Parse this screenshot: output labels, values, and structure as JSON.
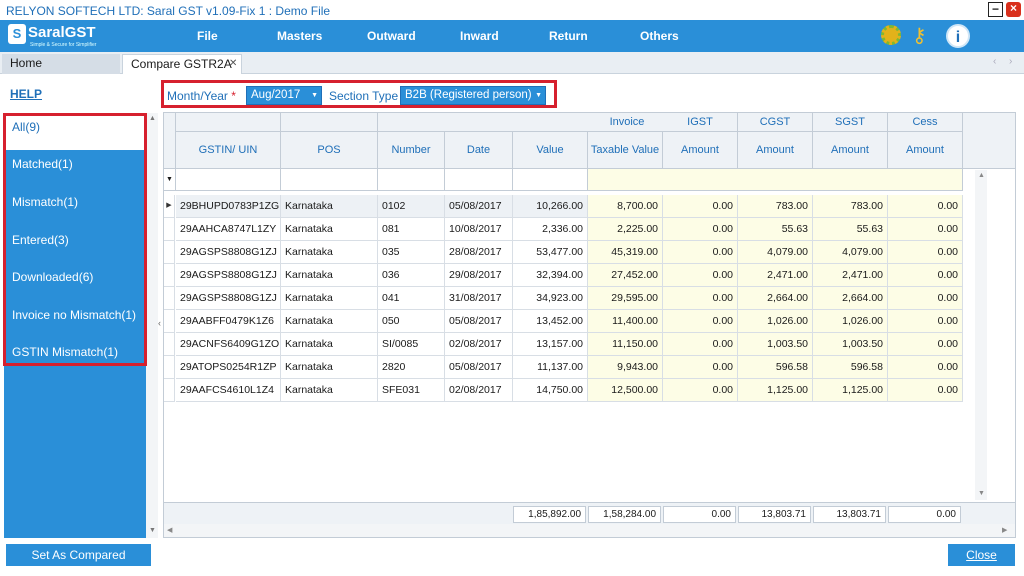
{
  "window": {
    "title": "RELYON SOFTECH LTD: Saral GST v1.09-Fix 1 : Demo File"
  },
  "logo": {
    "badge": "S",
    "brand": "SaralGST",
    "tagline": "Simple & Secure for Simplifier"
  },
  "menu": [
    "File",
    "Masters",
    "Outward",
    "Inward",
    "Return",
    "Others"
  ],
  "tabs": {
    "home": "Home",
    "active": "Compare GSTR2A"
  },
  "help_label": "HELP",
  "filter": {
    "month_label": "Month/Year",
    "required_mark": "*",
    "month_value": "Aug/2017",
    "section_label": "Section Type",
    "section_value": "B2B (Registered person)"
  },
  "left_items": [
    "All(9)",
    "Matched(1)",
    "Mismatch(1)",
    "Entered(3)",
    "Downloaded(6)",
    "Invoice no Mismatch(1)",
    "GSTIN Mismatch(1)"
  ],
  "grid": {
    "group_headers": {
      "invoice": "Invoice",
      "igst": "IGST",
      "cgst": "CGST",
      "sgst": "SGST",
      "cess": "Cess"
    },
    "columns": [
      "GSTIN/ UIN",
      "POS",
      "Number",
      "Date",
      "Value",
      "Taxable Value",
      "Amount",
      "Amount",
      "Amount",
      "Amount"
    ],
    "rows": [
      [
        "29BHUPD0783P1ZG",
        "Karnataka",
        "0102",
        "05/08/2017",
        "10,266.00",
        "8,700.00",
        "0.00",
        "783.00",
        "783.00",
        "0.00"
      ],
      [
        "29AAHCA8747L1ZY",
        "Karnataka",
        "081",
        "10/08/2017",
        "2,336.00",
        "2,225.00",
        "0.00",
        "55.63",
        "55.63",
        "0.00"
      ],
      [
        "29AGSPS8808G1ZJ",
        "Karnataka",
        "035",
        "28/08/2017",
        "53,477.00",
        "45,319.00",
        "0.00",
        "4,079.00",
        "4,079.00",
        "0.00"
      ],
      [
        "29AGSPS8808G1ZJ",
        "Karnataka",
        "036",
        "29/08/2017",
        "32,394.00",
        "27,452.00",
        "0.00",
        "2,471.00",
        "2,471.00",
        "0.00"
      ],
      [
        "29AGSPS8808G1ZJ",
        "Karnataka",
        "041",
        "31/08/2017",
        "34,923.00",
        "29,595.00",
        "0.00",
        "2,664.00",
        "2,664.00",
        "0.00"
      ],
      [
        "29AABFF0479K1Z6",
        "Karnataka",
        "050",
        "05/08/2017",
        "13,452.00",
        "11,400.00",
        "0.00",
        "1,026.00",
        "1,026.00",
        "0.00"
      ],
      [
        "29ACNFS6409G1ZO",
        "Karnataka",
        "SI/0085",
        "02/08/2017",
        "13,157.00",
        "11,150.00",
        "0.00",
        "1,003.50",
        "1,003.50",
        "0.00"
      ],
      [
        "29ATOPS0254R1ZP",
        "Karnataka",
        "2820",
        "05/08/2017",
        "11,137.00",
        "9,943.00",
        "0.00",
        "596.58",
        "596.58",
        "0.00"
      ],
      [
        "29AAFCS4610L1Z4",
        "Karnataka",
        "SFE031",
        "02/08/2017",
        "14,750.00",
        "12,500.00",
        "0.00",
        "1,125.00",
        "1,125.00",
        "0.00"
      ]
    ],
    "totals": [
      "1,85,892.00",
      "1,58,284.00",
      "0.00",
      "13,803.71",
      "13,803.71",
      "0.00"
    ]
  },
  "buttons": {
    "set_compared": "Set As Compared",
    "close": "Close"
  },
  "colors": {
    "accent": "#2a8fd8",
    "highlight": "#d6202e",
    "yellow_cell": "#fdfde6"
  }
}
